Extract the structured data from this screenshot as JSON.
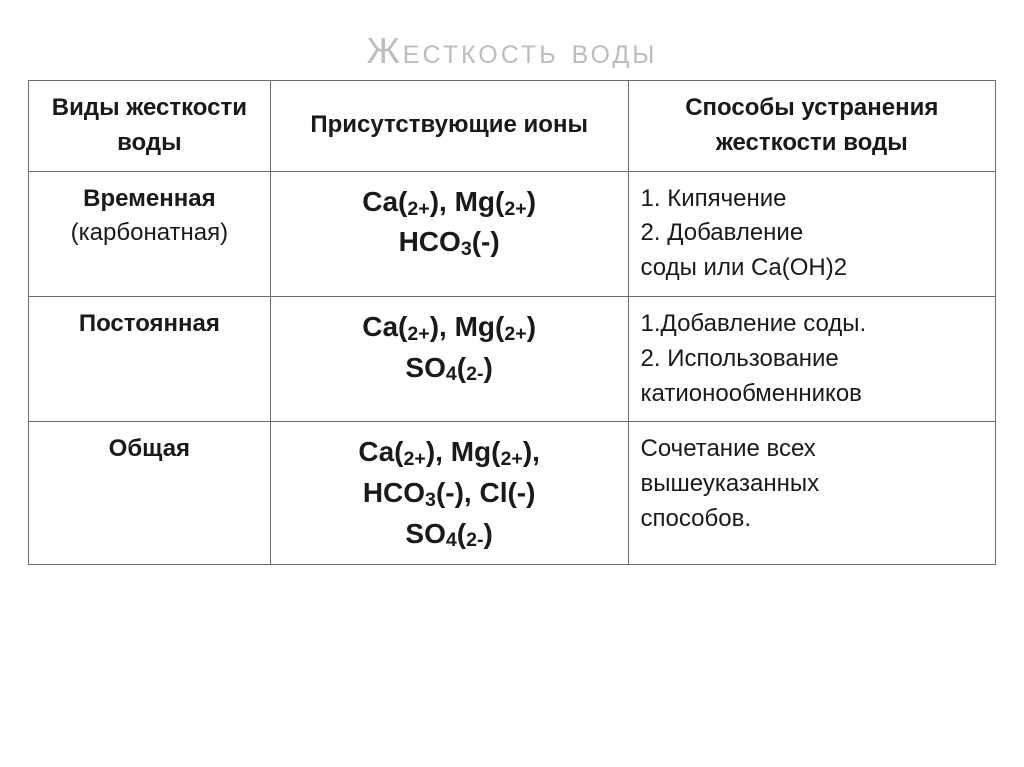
{
  "title": "Жесткость воды",
  "headers": {
    "col1": "Виды жесткости воды",
    "col2": "Присутствующие ионы",
    "col3": "Способы устранения жесткости воды"
  },
  "rows": [
    {
      "type_html": "Временная<br><span style=\"font-weight:400\">(карбонатная)</span>",
      "ions_html": "Ca(<span class=\"sub\">2+</span>), Mg(<span class=\"sub\">2+</span>)<br>HCO<span class=\"sub\">3</span>(-)",
      "methods_html": "1. Кипячение<br>2. Добавление<br>соды или Ca(OH)2"
    },
    {
      "type_html": "Постоянная",
      "ions_html": "Ca(<span class=\"sub\">2+</span>), Mg(<span class=\"sub\">2+</span>)<br>SO<span class=\"sub\">4</span>(<span class=\"sub\">2-</span>)",
      "methods_html": "1.Добавление соды.<br>2. Использование<br>катионообменников"
    },
    {
      "type_html": "Общая",
      "ions_html": "Ca(<span class=\"sub\">2+</span>), Mg(<span class=\"sub\">2+</span>),<br>HCO<span class=\"sub\">3</span>(-), Cl(-)<br>SO<span class=\"sub\">4</span>(<span class=\"sub\">2-</span>)",
      "methods_html": "Сочетание всех<br>вышеуказанных<br>способов."
    }
  ],
  "style": {
    "title_color": "#bdbdbd",
    "border_color": "#6b6b6b",
    "text_color": "#1a1a1a",
    "title_fontsize": 36,
    "cell_fontsize": 24,
    "ions_fontsize": 28,
    "col_widths": [
      "25%",
      "37%",
      "38%"
    ],
    "background": "#ffffff",
    "font_family": "Arial"
  }
}
